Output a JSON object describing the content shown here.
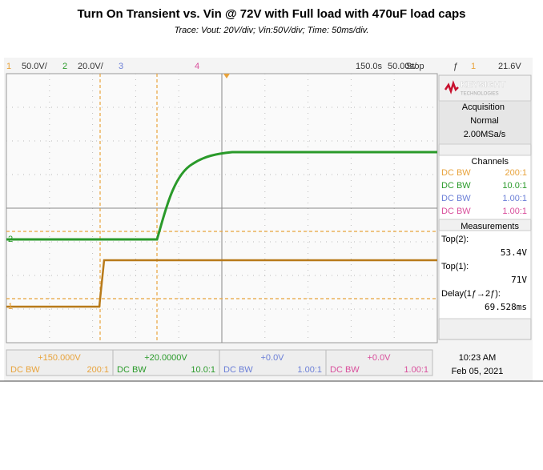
{
  "header": {
    "title": "Turn On Transient vs. Vin  @ 72V with Full load with 470uF load caps",
    "subtitle": "Trace: Vout: 20V/div; Vin:50V/div; Time: 50ms/div."
  },
  "top_bar": {
    "ch1_num": "1",
    "ch1_scale": "50.0V/",
    "ch2_num": "2",
    "ch2_scale": "20.0V/",
    "ch3_num": "3",
    "ch4_num": "4",
    "time_pos": "150.0s",
    "time_scale": "50.00s/",
    "state": "Stop",
    "trig_icon": "ƒ",
    "trig_ch": "1",
    "trig_level": "21.6V"
  },
  "markers": {
    "ch2": "2",
    "ch1": "1"
  },
  "side_panel": {
    "brand": "KEYSIGHT",
    "brand_sub": "TECHNOLOGIES",
    "acq_title": "Acquisition",
    "acq_mode": "Normal",
    "acq_rate": "2.00MSa/s",
    "channels_title": "Channels",
    "channels": [
      [
        "DC BW",
        "200:1"
      ],
      [
        "DC BW",
        "10.0:1"
      ],
      [
        "DC BW",
        "1.00:1"
      ],
      [
        "DC BW",
        "1.00:1"
      ]
    ],
    "meas_title": "Measurements",
    "meas": [
      [
        "Top(2):",
        "53.4V"
      ],
      [
        "Top(1):",
        "71V"
      ],
      [
        "Delay(1ƒ→2ƒ):",
        "69.528ms"
      ]
    ]
  },
  "bottom_bar": {
    "channels": [
      [
        "+150.000V",
        "DC BW",
        "200:1"
      ],
      [
        "+20.0000V",
        "DC BW",
        "10.0:1"
      ],
      [
        "+0.0V",
        "DC BW",
        "1.00:1"
      ],
      [
        "+0.0V",
        "DC BW",
        "1.00:1"
      ]
    ],
    "time": "10:23 AM",
    "date": "Feb 05, 2021"
  }
}
